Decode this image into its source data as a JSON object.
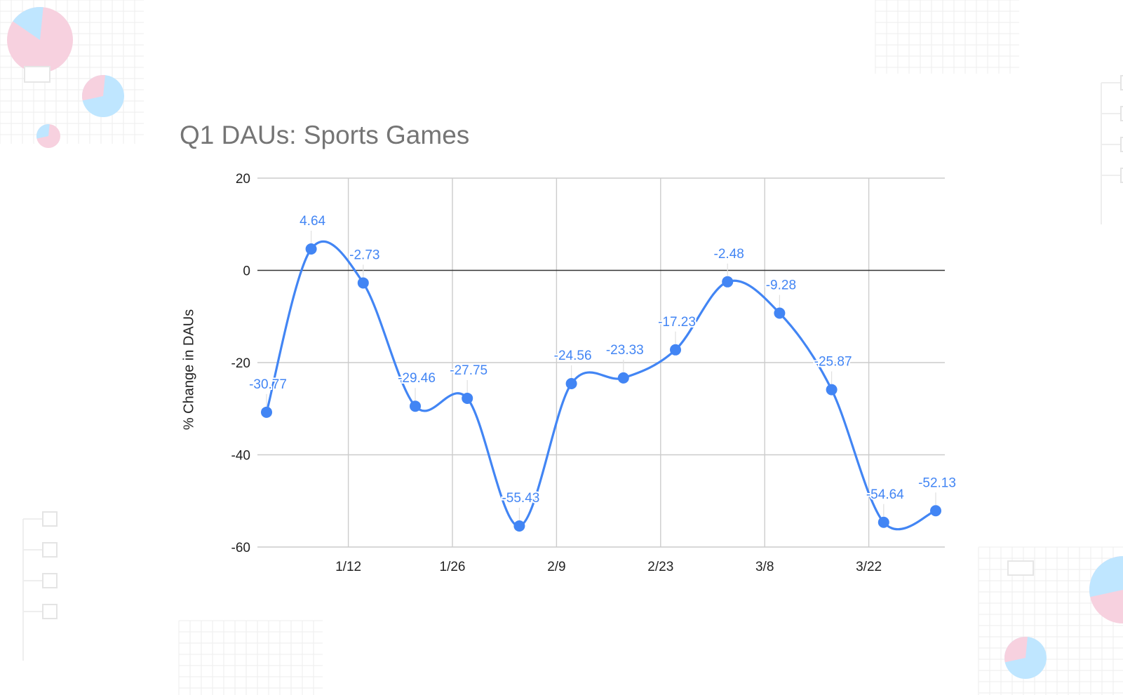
{
  "colors": {
    "line": "#4285f4",
    "label": "#4285f4",
    "grid": "#cccccc",
    "baseline": "#333333",
    "axis_text": "#222222",
    "title": "#757575",
    "deco_pink": "#f7d1df",
    "deco_blue": "#bfe6ff",
    "deco_grid": "#eeeeee"
  },
  "chart_data": {
    "type": "line",
    "title": "Q1 DAUs: Sports Games",
    "xlabel": "",
    "ylabel": "% Change in DAUs",
    "x_ticks": [
      "1/12",
      "1/26",
      "2/9",
      "2/23",
      "3/8",
      "3/22"
    ],
    "y_ticks": [
      "20",
      "0",
      "-20",
      "-40",
      "-60"
    ],
    "ylim": [
      -60,
      20
    ],
    "grid": true,
    "smooth": true,
    "series": [
      {
        "points": [
          {
            "x": "2020-01-01",
            "y": -30.77,
            "label": "-30.77"
          },
          {
            "x": "2020-01-07",
            "y": 4.64,
            "label": "4.64"
          },
          {
            "x": "2020-01-14",
            "y": -2.73,
            "label": "-2.73"
          },
          {
            "x": "2020-01-21",
            "y": -29.46,
            "label": "-29.46"
          },
          {
            "x": "2020-01-28",
            "y": -27.75,
            "label": "-27.75"
          },
          {
            "x": "2020-02-04",
            "y": -55.43,
            "label": "-55.43"
          },
          {
            "x": "2020-02-11",
            "y": -24.56,
            "label": "-24.56"
          },
          {
            "x": "2020-02-18",
            "y": -23.33,
            "label": "-23.33"
          },
          {
            "x": "2020-02-25",
            "y": -17.23,
            "label": "-17.23"
          },
          {
            "x": "2020-03-03",
            "y": -2.48,
            "label": "-2.48"
          },
          {
            "x": "2020-03-10",
            "y": -9.28,
            "label": "-9.28"
          },
          {
            "x": "2020-03-17",
            "y": -25.87,
            "label": "-25.87"
          },
          {
            "x": "2020-03-24",
            "y": -54.64,
            "label": "-54.64"
          },
          {
            "x": "2020-03-31",
            "y": -52.13,
            "label": "-52.13"
          }
        ]
      }
    ]
  }
}
